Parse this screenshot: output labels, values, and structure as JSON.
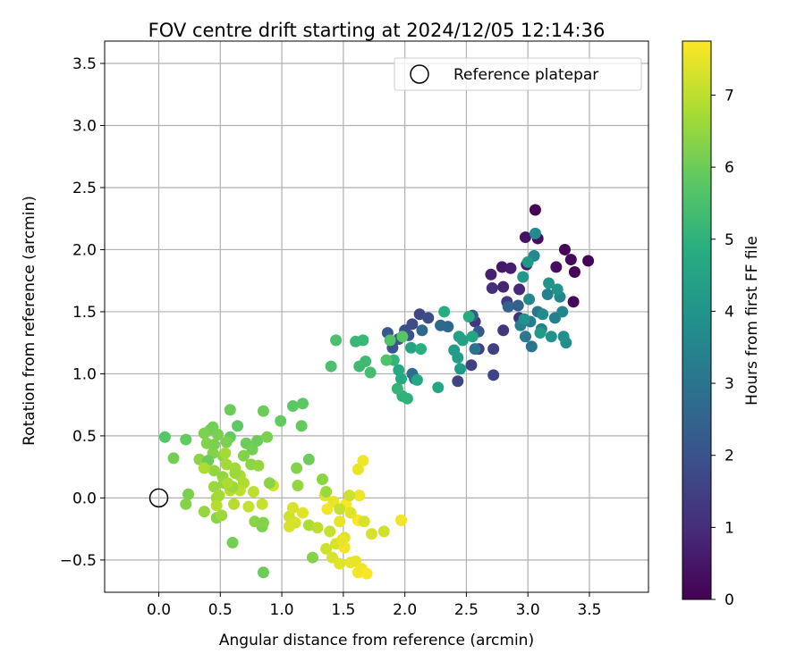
{
  "chart_data": {
    "type": "scatter",
    "title": "FOV centre drift starting at 2024/12/05 12:14:36",
    "xlabel": "Angular distance from reference (arcmin)",
    "ylabel": "Rotation from reference (arcmin)",
    "xlim": [
      -0.44,
      3.98
    ],
    "ylim": [
      -0.76,
      3.68
    ],
    "xticks": [
      "0.0",
      "0.5",
      "1.0",
      "1.5",
      "2.0",
      "2.5",
      "3.0",
      "3.5"
    ],
    "yticks": [
      "−0.5",
      "0.0",
      "0.5",
      "1.0",
      "1.5",
      "2.0",
      "2.5",
      "3.0",
      "3.5"
    ],
    "grid": true,
    "legend": {
      "placement": "top-right",
      "entries": [
        "Reference platepar"
      ]
    },
    "reference": {
      "x": 0.0,
      "y": 0.0
    },
    "colorbar": {
      "label": "Hours from first FF file",
      "colormap": "viridis",
      "range": [
        0,
        7.75
      ],
      "ticks": [
        "0",
        "1",
        "2",
        "3",
        "4",
        "5",
        "6",
        "7"
      ]
    },
    "points": [
      [
        3.06,
        2.32,
        0.0
      ],
      [
        3.3,
        2.0,
        0.1
      ],
      [
        3.49,
        1.91,
        0.1
      ],
      [
        3.38,
        1.82,
        0.1
      ],
      [
        3.37,
        1.58,
        0.2
      ],
      [
        3.35,
        1.92,
        0.2
      ],
      [
        3.23,
        1.86,
        0.3
      ],
      [
        3.08,
        2.09,
        0.3
      ],
      [
        2.98,
        2.1,
        0.4
      ],
      [
        2.79,
        1.86,
        0.5
      ],
      [
        2.86,
        1.85,
        0.6
      ],
      [
        2.99,
        1.88,
        0.6
      ],
      [
        2.7,
        1.8,
        0.7
      ],
      [
        2.8,
        1.7,
        0.8
      ],
      [
        2.93,
        1.68,
        0.9
      ],
      [
        2.71,
        1.69,
        1.0
      ],
      [
        2.93,
        1.45,
        1.1
      ],
      [
        2.57,
        1.42,
        1.2
      ],
      [
        2.8,
        1.35,
        1.2
      ],
      [
        2.83,
        1.58,
        1.3
      ],
      [
        2.6,
        1.2,
        1.4
      ],
      [
        2.54,
        1.07,
        1.5
      ],
      [
        2.72,
        1.2,
        1.5
      ],
      [
        2.43,
        0.94,
        1.6
      ],
      [
        2.72,
        0.99,
        1.6
      ],
      [
        2.12,
        1.48,
        1.7
      ],
      [
        2.19,
        1.45,
        1.8
      ],
      [
        2.06,
        1.4,
        1.8
      ],
      [
        2.0,
        1.35,
        1.9
      ],
      [
        1.95,
        1.28,
        2.0
      ],
      [
        2.03,
        1.31,
        2.0
      ],
      [
        1.9,
        1.21,
        2.1
      ],
      [
        1.86,
        1.33,
        2.1
      ],
      [
        2.6,
        1.34,
        2.2
      ],
      [
        2.55,
        1.47,
        2.3
      ],
      [
        2.92,
        1.55,
        2.4
      ],
      [
        2.84,
        1.54,
        2.5
      ],
      [
        2.35,
        1.38,
        2.6
      ],
      [
        2.29,
        1.39,
        2.7
      ],
      [
        2.14,
        1.35,
        2.7
      ],
      [
        2.06,
        1.0,
        2.8
      ],
      [
        2.08,
        0.96,
        2.9
      ],
      [
        2.57,
        1.2,
        2.9
      ],
      [
        3.03,
        1.22,
        3.0
      ],
      [
        3.08,
        1.5,
        3.0
      ],
      [
        2.98,
        1.3,
        3.1
      ],
      [
        3.02,
        1.42,
        3.2
      ],
      [
        2.94,
        1.39,
        3.3
      ],
      [
        3.22,
        1.45,
        3.3
      ],
      [
        3.16,
        1.64,
        3.4
      ],
      [
        3.11,
        1.36,
        3.4
      ],
      [
        3.26,
        1.62,
        3.5
      ],
      [
        3.28,
        1.5,
        3.5
      ],
      [
        3.01,
        1.6,
        3.6
      ],
      [
        3.05,
        1.95,
        3.6
      ],
      [
        3.06,
        2.13,
        3.7
      ],
      [
        3.12,
        1.48,
        3.7
      ],
      [
        3.29,
        1.3,
        3.8
      ],
      [
        3.31,
        1.25,
        3.8
      ],
      [
        3.19,
        1.3,
        3.9
      ],
      [
        2.97,
        1.44,
        3.9
      ],
      [
        3.17,
        1.73,
        4.0
      ],
      [
        3.24,
        1.68,
        4.0
      ],
      [
        2.96,
        1.78,
        4.1
      ],
      [
        3.0,
        1.9,
        4.1
      ],
      [
        3.1,
        1.33,
        4.2
      ],
      [
        2.45,
        1.04,
        4.2
      ],
      [
        2.43,
        1.13,
        4.3
      ],
      [
        2.4,
        1.19,
        4.3
      ],
      [
        2.47,
        1.27,
        4.4
      ],
      [
        2.44,
        1.3,
        4.4
      ],
      [
        2.55,
        1.3,
        4.5
      ],
      [
        2.05,
        1.21,
        4.5
      ],
      [
        2.27,
        0.89,
        4.6
      ],
      [
        2.1,
        0.95,
        4.6
      ],
      [
        1.97,
        0.96,
        4.7
      ],
      [
        1.95,
        1.03,
        4.7
      ],
      [
        2.32,
        1.5,
        4.8
      ],
      [
        2.52,
        1.46,
        4.8
      ],
      [
        2.13,
        1.2,
        4.9
      ],
      [
        2.02,
        0.8,
        5.0
      ],
      [
        1.98,
        0.82,
        5.0
      ],
      [
        1.94,
        0.88,
        5.1
      ],
      [
        1.91,
        1.11,
        5.1
      ],
      [
        1.6,
        1.26,
        5.2
      ],
      [
        1.66,
        1.27,
        5.2
      ],
      [
        1.68,
        1.1,
        5.3
      ],
      [
        1.63,
        1.06,
        5.3
      ],
      [
        1.72,
        1.01,
        5.4
      ],
      [
        1.4,
        1.06,
        5.5
      ],
      [
        1.44,
        1.27,
        5.5
      ],
      [
        1.85,
        1.11,
        5.6
      ],
      [
        1.88,
        1.27,
        5.6
      ],
      [
        1.98,
        1.3,
        5.7
      ],
      [
        1.17,
        0.76,
        5.8
      ],
      [
        1.09,
        0.74,
        5.8
      ],
      [
        1.16,
        0.58,
        5.9
      ],
      [
        0.99,
        0.62,
        5.9
      ],
      [
        0.85,
        0.7,
        6.0
      ],
      [
        0.58,
        0.71,
        6.0
      ],
      [
        0.44,
        0.57,
        6.1
      ],
      [
        0.42,
        0.55,
        6.1
      ],
      [
        0.48,
        0.51,
        6.2
      ],
      [
        0.37,
        0.52,
        6.2
      ],
      [
        0.39,
        0.44,
        6.3
      ],
      [
        0.44,
        0.36,
        6.3
      ],
      [
        0.52,
        0.34,
        6.4
      ],
      [
        0.4,
        0.3,
        6.4
      ],
      [
        0.45,
        0.22,
        6.5
      ],
      [
        0.52,
        0.17,
        6.5
      ],
      [
        0.45,
        0.09,
        6.6
      ],
      [
        0.47,
        0.0,
        6.6
      ],
      [
        0.55,
        0.27,
        6.7
      ],
      [
        0.62,
        0.24,
        6.7
      ],
      [
        0.66,
        0.18,
        6.8
      ],
      [
        0.69,
        0.12,
        6.8
      ],
      [
        0.58,
        0.06,
        6.9
      ],
      [
        0.61,
        -0.05,
        6.9
      ],
      [
        0.66,
        0.06,
        7.0
      ],
      [
        0.77,
        0.05,
        7.0
      ],
      [
        0.73,
        -0.07,
        7.1
      ],
      [
        0.84,
        -0.05,
        7.1
      ],
      [
        0.93,
        0.1,
        7.2
      ],
      [
        1.06,
        -0.15,
        7.2
      ],
      [
        1.11,
        -0.2,
        7.3
      ],
      [
        1.09,
        -0.08,
        7.3
      ],
      [
        1.17,
        -0.12,
        7.4
      ],
      [
        1.35,
        0.02,
        7.4
      ],
      [
        1.42,
        -0.03,
        7.5
      ],
      [
        1.62,
        0.23,
        7.5
      ],
      [
        1.66,
        0.3,
        7.6
      ],
      [
        1.63,
        0.02,
        7.6
      ],
      [
        1.52,
        -0.05,
        7.7
      ],
      [
        1.62,
        -0.18,
        7.7
      ],
      [
        0.58,
        0.49,
        5.9
      ],
      [
        0.64,
        0.58,
        5.8
      ],
      [
        0.71,
        0.44,
        6.0
      ],
      [
        0.76,
        0.39,
        6.1
      ],
      [
        0.8,
        0.46,
        6.0
      ],
      [
        0.88,
        0.49,
        6.2
      ],
      [
        0.69,
        0.34,
        6.3
      ],
      [
        0.75,
        0.27,
        6.4
      ],
      [
        0.81,
        0.26,
        6.5
      ],
      [
        0.62,
        0.2,
        6.6
      ],
      [
        0.55,
        0.45,
        6.2
      ],
      [
        0.33,
        0.31,
        6.4
      ],
      [
        0.22,
        0.47,
        5.9
      ],
      [
        0.12,
        0.32,
        6.1
      ],
      [
        0.05,
        0.49,
        5.7
      ],
      [
        0.24,
        0.03,
        6.2
      ],
      [
        0.22,
        -0.05,
        6.3
      ],
      [
        0.37,
        -0.11,
        6.5
      ],
      [
        0.47,
        -0.16,
        6.4
      ],
      [
        0.51,
        -0.14,
        6.6
      ],
      [
        0.6,
        -0.36,
        6.1
      ],
      [
        0.84,
        -0.23,
        6.2
      ],
      [
        0.85,
        -0.6,
        6.0
      ],
      [
        0.78,
        -0.19,
        6.4
      ],
      [
        0.85,
        -0.2,
        6.3
      ],
      [
        1.12,
        0.24,
        6.3
      ],
      [
        1.13,
        0.1,
        6.5
      ],
      [
        1.33,
        0.15,
        6.4
      ],
      [
        1.36,
        0.05,
        6.6
      ],
      [
        1.22,
        0.31,
        6.0
      ],
      [
        1.25,
        -0.48,
        6.3
      ],
      [
        1.22,
        -0.22,
        6.8
      ],
      [
        1.29,
        -0.24,
        7.0
      ],
      [
        1.39,
        -0.27,
        7.1
      ],
      [
        1.36,
        -0.41,
        7.2
      ],
      [
        1.41,
        -0.48,
        7.3
      ],
      [
        1.44,
        -0.37,
        7.3
      ],
      [
        1.47,
        -0.53,
        7.4
      ],
      [
        1.51,
        -0.32,
        7.4
      ],
      [
        1.56,
        -0.52,
        7.5
      ],
      [
        1.6,
        -0.51,
        7.5
      ],
      [
        1.65,
        -0.57,
        7.6
      ],
      [
        1.62,
        -0.6,
        7.6
      ],
      [
        1.69,
        -0.61,
        7.7
      ],
      [
        1.51,
        -0.4,
        7.6
      ],
      [
        1.49,
        -0.34,
        7.5
      ],
      [
        1.37,
        -0.09,
        7.6
      ],
      [
        1.47,
        -0.19,
        7.5
      ],
      [
        1.56,
        -0.12,
        7.4
      ],
      [
        1.73,
        -0.29,
        7.3
      ],
      [
        1.83,
        -0.27,
        7.2
      ],
      [
        1.97,
        -0.18,
        7.6
      ],
      [
        1.67,
        -0.19,
        7.3
      ],
      [
        1.55,
        0.02,
        7.2
      ],
      [
        1.47,
        -0.09,
        7.1
      ],
      [
        1.06,
        -0.23,
        7.3
      ],
      [
        0.9,
        0.12,
        6.4
      ],
      [
        0.6,
        0.09,
        6.6
      ],
      [
        0.53,
        0.12,
        6.5
      ],
      [
        0.54,
        0.36,
        6.7
      ],
      [
        0.45,
        0.43,
        6.2
      ],
      [
        0.4,
        0.3,
        6.0
      ],
      [
        0.37,
        0.24,
        6.8
      ],
      [
        0.49,
        0.02,
        6.7
      ],
      [
        0.47,
        -0.06,
        6.9
      ],
      [
        0.56,
        0.12,
        6.8
      ]
    ]
  }
}
